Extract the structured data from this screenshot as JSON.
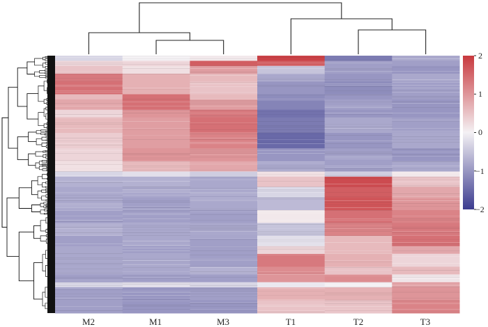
{
  "chart_data": {
    "type": "heatmap",
    "title": "",
    "xlabel": "",
    "ylabel": "",
    "columns": [
      "M2",
      "M1",
      "M3",
      "T1",
      "T2",
      "T3"
    ],
    "colorbar": {
      "ticks": [
        "2",
        "1",
        "0",
        "−1",
        "−2"
      ],
      "tick_values": [
        2,
        1,
        0,
        -1,
        -2
      ],
      "range": [
        -2,
        2
      ],
      "colors": {
        "low": "#3b3b8f",
        "mid": "#f4f1f4",
        "high": "#c8393e"
      }
    },
    "row_blocks": [
      {
        "start": 0.0,
        "end": 0.02,
        "values": [
          -0.3,
          0.0,
          0.1,
          1.9,
          -1.3,
          -0.8
        ]
      },
      {
        "start": 0.02,
        "end": 0.04,
        "values": [
          0.3,
          0.3,
          1.6,
          1.6,
          -0.9,
          -0.9
        ]
      },
      {
        "start": 0.04,
        "end": 0.07,
        "values": [
          0.5,
          0.2,
          0.9,
          -0.5,
          -0.9,
          -1.0
        ]
      },
      {
        "start": 0.07,
        "end": 0.1,
        "values": [
          1.3,
          0.7,
          0.6,
          -0.8,
          -1.0,
          -0.8
        ]
      },
      {
        "start": 0.1,
        "end": 0.15,
        "values": [
          1.4,
          0.7,
          0.5,
          -1.0,
          -1.1,
          -0.9
        ]
      },
      {
        "start": 0.15,
        "end": 0.17,
        "values": [
          0.6,
          1.4,
          0.6,
          -1.1,
          -1.0,
          -0.9
        ]
      },
      {
        "start": 0.17,
        "end": 0.21,
        "values": [
          0.8,
          1.4,
          0.9,
          -1.2,
          -0.9,
          -1.0
        ]
      },
      {
        "start": 0.21,
        "end": 0.24,
        "values": [
          0.3,
          1.0,
          1.3,
          -1.4,
          -1.0,
          -1.0
        ]
      },
      {
        "start": 0.24,
        "end": 0.3,
        "values": [
          0.6,
          0.9,
          1.4,
          -1.3,
          -0.8,
          -0.9
        ]
      },
      {
        "start": 0.3,
        "end": 0.36,
        "values": [
          0.4,
          0.9,
          1.2,
          -1.5,
          -1.0,
          -0.8
        ]
      },
      {
        "start": 0.36,
        "end": 0.41,
        "values": [
          0.3,
          1.0,
          1.0,
          -1.0,
          -0.9,
          -1.0
        ]
      },
      {
        "start": 0.41,
        "end": 0.45,
        "values": [
          0.2,
          0.6,
          0.8,
          -0.8,
          -0.9,
          -0.8
        ]
      },
      {
        "start": 0.45,
        "end": 0.47,
        "values": [
          -0.3,
          -0.2,
          -0.4,
          0.2,
          -0.4,
          0.1
        ]
      },
      {
        "start": 0.47,
        "end": 0.51,
        "values": [
          -0.7,
          -0.7,
          -0.8,
          0.5,
          1.8,
          0.5
        ]
      },
      {
        "start": 0.51,
        "end": 0.55,
        "values": [
          -0.8,
          -0.8,
          -0.8,
          -0.3,
          1.6,
          0.8
        ]
      },
      {
        "start": 0.55,
        "end": 0.6,
        "values": [
          -0.8,
          -0.9,
          -0.8,
          -0.6,
          1.7,
          1.0
        ]
      },
      {
        "start": 0.6,
        "end": 0.65,
        "values": [
          -0.9,
          -0.9,
          -0.9,
          0.1,
          1.4,
          1.2
        ]
      },
      {
        "start": 0.65,
        "end": 0.7,
        "values": [
          -0.7,
          -0.8,
          -0.8,
          -0.5,
          1.2,
          1.3
        ]
      },
      {
        "start": 0.7,
        "end": 0.74,
        "values": [
          -0.9,
          -0.8,
          -0.9,
          -0.2,
          0.6,
          1.4
        ]
      },
      {
        "start": 0.74,
        "end": 0.77,
        "values": [
          -0.8,
          -0.9,
          -0.9,
          0.3,
          0.6,
          0.8
        ]
      },
      {
        "start": 0.77,
        "end": 0.82,
        "values": [
          -0.8,
          -0.8,
          -0.9,
          1.3,
          0.7,
          0.3
        ]
      },
      {
        "start": 0.82,
        "end": 0.85,
        "values": [
          -0.8,
          -0.8,
          -0.7,
          1.1,
          0.5,
          0.6
        ]
      },
      {
        "start": 0.85,
        "end": 0.88,
        "values": [
          -0.9,
          -0.9,
          -0.9,
          1.0,
          1.1,
          0.1
        ]
      },
      {
        "start": 0.88,
        "end": 0.9,
        "values": [
          -0.3,
          -0.2,
          -0.3,
          -0.1,
          0.0,
          0.9
        ]
      },
      {
        "start": 0.9,
        "end": 0.95,
        "values": [
          -0.9,
          -1.0,
          -0.9,
          0.7,
          0.7,
          1.0
        ]
      },
      {
        "start": 0.95,
        "end": 1.0,
        "values": [
          -0.9,
          -1.0,
          -1.0,
          0.5,
          0.5,
          1.2
        ]
      }
    ]
  }
}
